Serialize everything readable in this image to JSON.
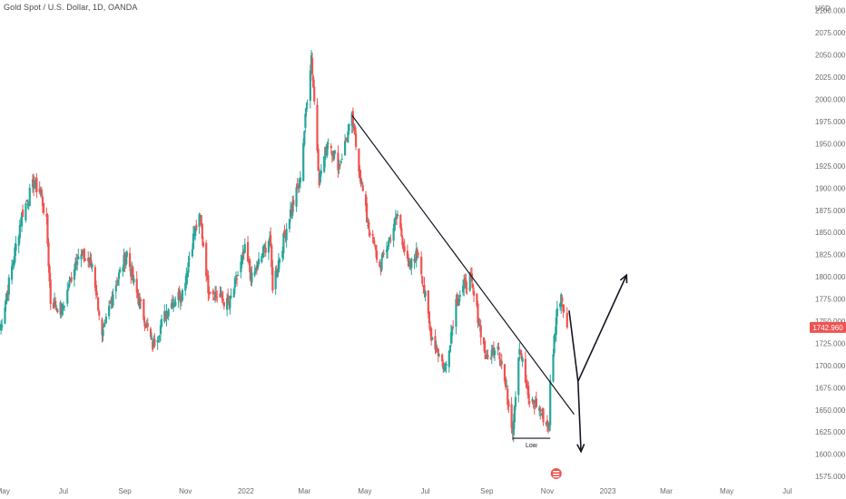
{
  "chart_data": {
    "type": "candlestick",
    "title": "Gold Spot / U.S. Dollar, 1D, OANDA",
    "y_unit": "USD",
    "ylim": [
      1570,
      2112
    ],
    "y_ticks": [
      1575,
      1600,
      1625,
      1650,
      1675,
      1700,
      1725,
      1750,
      1775,
      1800,
      1825,
      1850,
      1875,
      1900,
      1925,
      1950,
      1975,
      2000,
      2025,
      2050,
      2075,
      2100
    ],
    "x_range": [
      "2021-04-28",
      "2023-07-20"
    ],
    "x_ticks": [
      {
        "date": "2021-05-01",
        "label": "May"
      },
      {
        "date": "2021-07-01",
        "label": "Jul"
      },
      {
        "date": "2021-09-01",
        "label": "Sep"
      },
      {
        "date": "2021-11-01",
        "label": "Nov"
      },
      {
        "date": "2022-01-01",
        "label": "2022"
      },
      {
        "date": "2022-03-01",
        "label": "Mar"
      },
      {
        "date": "2022-05-01",
        "label": "May"
      },
      {
        "date": "2022-07-01",
        "label": "Jul"
      },
      {
        "date": "2022-09-01",
        "label": "Sep"
      },
      {
        "date": "2022-11-01",
        "label": "Nov"
      },
      {
        "date": "2023-01-01",
        "label": "2023"
      },
      {
        "date": "2023-03-01",
        "label": "Mar"
      },
      {
        "date": "2023-05-01",
        "label": "May"
      },
      {
        "date": "2023-07-01",
        "label": "Jul"
      }
    ],
    "path_points": [
      {
        "date": "2021-04-28",
        "close": 1740
      },
      {
        "date": "2021-05-20",
        "close": 1870
      },
      {
        "date": "2021-06-01",
        "close": 1905
      },
      {
        "date": "2021-06-08",
        "close": 1895
      },
      {
        "date": "2021-06-14",
        "close": 1860
      },
      {
        "date": "2021-06-18",
        "close": 1772
      },
      {
        "date": "2021-06-30",
        "close": 1763
      },
      {
        "date": "2021-07-15",
        "close": 1825
      },
      {
        "date": "2021-07-30",
        "close": 1815
      },
      {
        "date": "2021-08-06",
        "close": 1760
      },
      {
        "date": "2021-08-09",
        "close": 1730
      },
      {
        "date": "2021-08-20",
        "close": 1783
      },
      {
        "date": "2021-09-03",
        "close": 1827
      },
      {
        "date": "2021-09-10",
        "close": 1792
      },
      {
        "date": "2021-09-29",
        "close": 1722
      },
      {
        "date": "2021-10-15",
        "close": 1767
      },
      {
        "date": "2021-10-29",
        "close": 1783
      },
      {
        "date": "2021-11-10",
        "close": 1850
      },
      {
        "date": "2021-11-16",
        "close": 1866
      },
      {
        "date": "2021-11-24",
        "close": 1788
      },
      {
        "date": "2021-12-15",
        "close": 1768
      },
      {
        "date": "2021-12-31",
        "close": 1829
      },
      {
        "date": "2022-01-07",
        "close": 1797
      },
      {
        "date": "2022-01-25",
        "close": 1845
      },
      {
        "date": "2022-01-28",
        "close": 1790
      },
      {
        "date": "2022-02-14",
        "close": 1870
      },
      {
        "date": "2022-02-24",
        "close": 1905
      },
      {
        "date": "2022-03-08",
        "close": 2050
      },
      {
        "date": "2022-03-16",
        "close": 1910
      },
      {
        "date": "2022-03-25",
        "close": 1955
      },
      {
        "date": "2022-04-05",
        "close": 1925
      },
      {
        "date": "2022-04-18",
        "close": 1978
      },
      {
        "date": "2022-05-03",
        "close": 1865
      },
      {
        "date": "2022-05-16",
        "close": 1810
      },
      {
        "date": "2022-06-03",
        "close": 1870
      },
      {
        "date": "2022-06-14",
        "close": 1808
      },
      {
        "date": "2022-06-24",
        "close": 1830
      },
      {
        "date": "2022-07-06",
        "close": 1738
      },
      {
        "date": "2022-07-21",
        "close": 1695
      },
      {
        "date": "2022-08-01",
        "close": 1773
      },
      {
        "date": "2022-08-15",
        "close": 1800
      },
      {
        "date": "2022-08-24",
        "close": 1750
      },
      {
        "date": "2022-09-01",
        "close": 1705
      },
      {
        "date": "2022-09-12",
        "close": 1727
      },
      {
        "date": "2022-09-27",
        "close": 1630
      },
      {
        "date": "2022-10-04",
        "close": 1725
      },
      {
        "date": "2022-10-13",
        "close": 1660
      },
      {
        "date": "2022-10-21",
        "close": 1657
      },
      {
        "date": "2022-11-02",
        "close": 1632
      },
      {
        "date": "2022-11-03",
        "close": 1630
      },
      {
        "date": "2022-11-04",
        "close": 1680
      },
      {
        "date": "2022-11-10",
        "close": 1755
      },
      {
        "date": "2022-11-15",
        "close": 1782
      },
      {
        "date": "2022-11-21",
        "close": 1742.96
      }
    ],
    "last_price": {
      "value": 1742.96,
      "label": "1742.960"
    },
    "annotations": {
      "low_label": "Low",
      "trendline": {
        "start": {
          "date": "2022-04-18",
          "price": 1982
        },
        "end": {
          "date": "2022-11-28",
          "price": 1645
        }
      },
      "low_line": {
        "start": {
          "date": "2022-09-27",
          "price": 1618
        },
        "end": {
          "date": "2022-11-04",
          "price": 1618
        }
      },
      "bull_path": [
        {
          "date": "2022-11-23",
          "price": 1762
        },
        {
          "date": "2022-12-02",
          "price": 1682
        },
        {
          "date": "2023-01-20",
          "price": 1802
        }
      ],
      "bear_arrow": [
        {
          "date": "2022-12-02",
          "price": 1682
        },
        {
          "date": "2022-12-05",
          "price": 1603
        }
      ]
    },
    "colors": {
      "up": "#26a69a",
      "down": "#ef5350",
      "axis_text": "#6b6b6b",
      "drawing": "#131722",
      "price_tag": "#ef5350"
    }
  }
}
